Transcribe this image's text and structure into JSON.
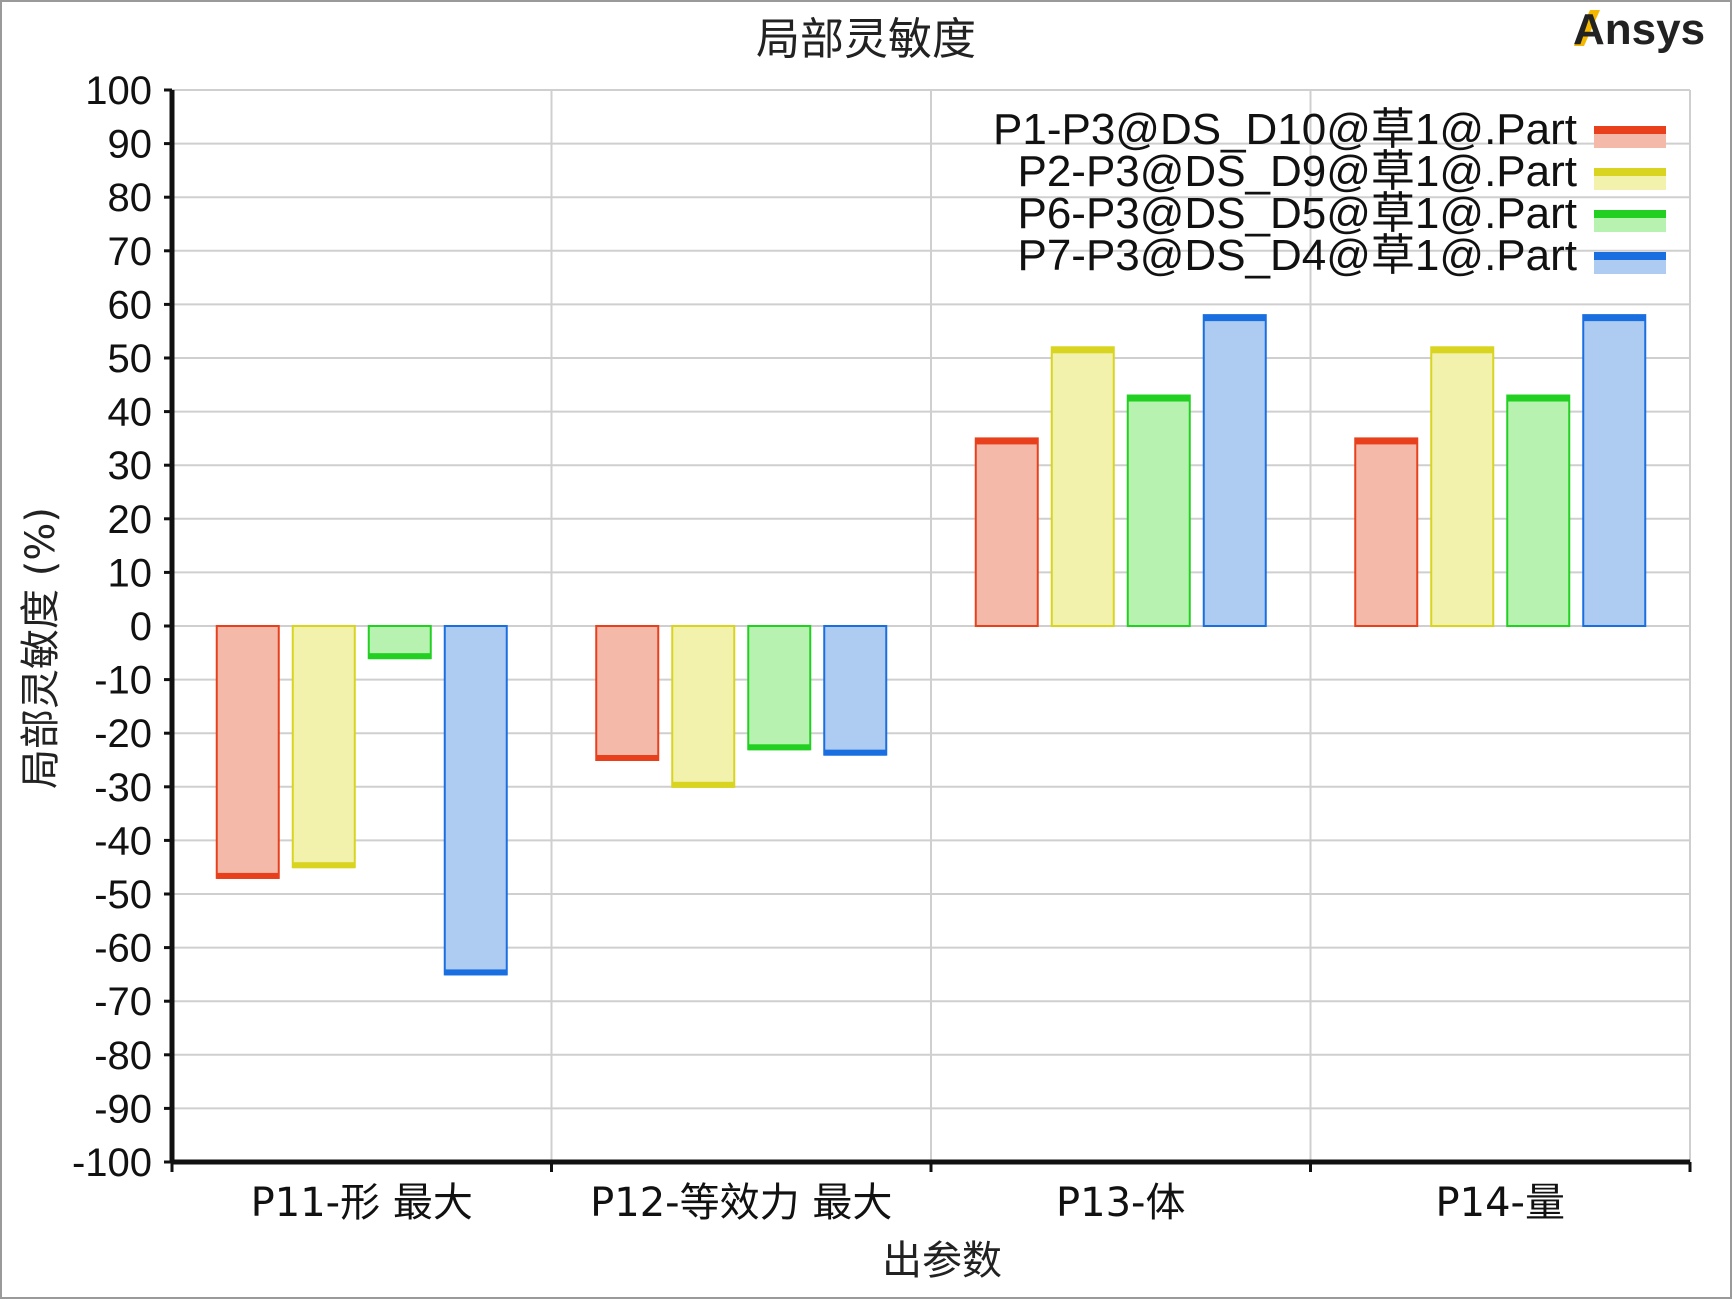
{
  "brand": {
    "logo_text": "Ansys",
    "accent": "#f5b800"
  },
  "chart_data": {
    "type": "bar",
    "title": "局部灵敏度",
    "xlabel": "出参数",
    "ylabel": "局部灵敏度 (%)",
    "ylim": [
      -100,
      100
    ],
    "yticks": [
      100,
      90,
      80,
      70,
      60,
      50,
      40,
      30,
      20,
      10,
      0,
      -10,
      -20,
      -30,
      -40,
      -50,
      -60,
      -70,
      -80,
      -90,
      -100
    ],
    "grid": true,
    "legend_position": "top-right",
    "categories": [
      "P11-形  最大",
      "P12-等效力  最大",
      "P13-体",
      "P14-量"
    ],
    "series": [
      {
        "name": "P1-P3@DS_D10@草1@.Part",
        "color": "#e8401c",
        "fill": "#f4b9a9",
        "values": [
          -47,
          -25,
          35,
          35
        ]
      },
      {
        "name": "P2-P3@DS_D9@草1@.Part",
        "color": "#d8d420",
        "fill": "#f2f2ac",
        "values": [
          -45,
          -30,
          52,
          52
        ]
      },
      {
        "name": "P6-P3@DS_D5@草1@.Part",
        "color": "#22d022",
        "fill": "#b8f2b0",
        "values": [
          -6,
          -23,
          43,
          43
        ]
      },
      {
        "name": "P7-P3@DS_D4@草1@.Part",
        "color": "#1a6fe0",
        "fill": "#aecbf2",
        "values": [
          -65,
          -24,
          58,
          58
        ]
      }
    ]
  }
}
